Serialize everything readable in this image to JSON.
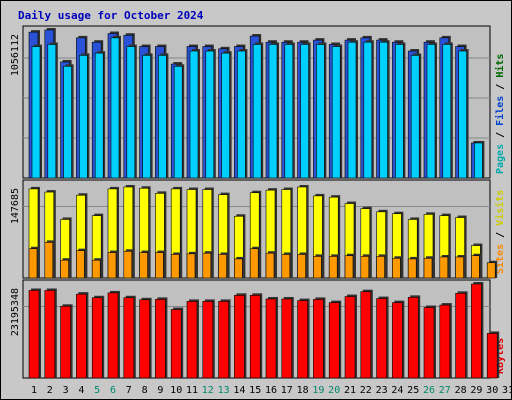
{
  "chart_data": {
    "type": "bar",
    "title": "Daily usage for October 2024",
    "categories": [
      "1",
      "2",
      "3",
      "4",
      "5",
      "6",
      "7",
      "8",
      "9",
      "10",
      "11",
      "12",
      "13",
      "14",
      "15",
      "16",
      "17",
      "18",
      "19",
      "20",
      "21",
      "22",
      "23",
      "24",
      "25",
      "26",
      "27",
      "28",
      "29",
      "30",
      "31"
    ],
    "weekend_days": [
      "5",
      "6",
      "12",
      "13",
      "19",
      "20",
      "26",
      "27"
    ],
    "panels": [
      {
        "id": "top",
        "y_max_label": "1056112",
        "y_max": 1056112,
        "legend": [
          {
            "text": "Pages",
            "color": "#00aaaa"
          },
          {
            "text": " / ",
            "color": "#000000"
          },
          {
            "text": "Files",
            "color": "#0044cc"
          },
          {
            "text": " / ",
            "color": "#000000"
          },
          {
            "text": "Hits",
            "color": "#006600"
          }
        ],
        "series": [
          {
            "name": "Hits",
            "color": "#2a52d6",
            "values": [
              1041000,
              1056112,
              828000,
              1000000,
              969000,
              1031000,
              1019000,
              938000,
              938000,
              813000,
              938000,
              938000,
              922000,
              938000,
              1013000,
              969000,
              969000,
              969000,
              984000,
              953000,
              984000,
              1000000,
              984000,
              969000,
              906000,
              969000,
              1000000,
              938000,
              250000,
              0,
              0
            ]
          },
          {
            "name": "Files",
            "color": "#00d0ff",
            "values": [
              938000,
              953000,
              797000,
              875000,
              891000,
              1000000,
              938000,
              875000,
              875000,
              797000,
              906000,
              906000,
              891000,
              906000,
              953000,
              953000,
              953000,
              953000,
              953000,
              938000,
              969000,
              969000,
              969000,
              953000,
              875000,
              953000,
              953000,
              906000,
              250000,
              0,
              0
            ]
          }
        ]
      },
      {
        "id": "mid",
        "y_max_label": "147685",
        "y_max": 147685,
        "legend": [
          {
            "text": "Sites",
            "color": "#ff8800"
          },
          {
            "text": " / ",
            "color": "#000000"
          },
          {
            "text": "Visits",
            "color": "#cccc00"
          }
        ],
        "series": [
          {
            "name": "Visits",
            "color": "#ffff00",
            "values": [
              140000,
              135000,
              92000,
              130000,
              98000,
              140000,
              143000,
              141000,
              133000,
              140000,
              139000,
              139000,
              131000,
              97000,
              134000,
              138000,
              139000,
              143000,
              129000,
              127000,
              117000,
              109000,
              104000,
              101000,
              92000,
              100000,
              98000,
              95000,
              51000,
              0,
              0
            ]
          },
          {
            "name": "Sites",
            "color": "#ff9900",
            "values": [
              46000,
              56000,
              28000,
              43000,
              28000,
              40000,
              42000,
              40000,
              40000,
              37000,
              38000,
              39000,
              37000,
              30000,
              46000,
              39000,
              37000,
              37000,
              34000,
              34000,
              35000,
              34000,
              34000,
              31000,
              30000,
              31000,
              33000,
              33000,
              35000,
              24000,
              0
            ]
          }
        ]
      },
      {
        "id": "bot",
        "y_max_label": "23195348",
        "y_max": 23195348,
        "legend": [
          {
            "text": "KBytes",
            "color": "#dd0000"
          }
        ],
        "series": [
          {
            "name": "KBytes",
            "color": "#ff0000",
            "values": [
              21600000,
              21600000,
              17700000,
              20700000,
              19800000,
              21000000,
              19800000,
              19300000,
              19400000,
              16900000,
              18900000,
              18900000,
              18900000,
              20400000,
              20400000,
              19500000,
              19500000,
              19100000,
              19400000,
              18600000,
              20100000,
              21300000,
              19600000,
              18600000,
              19900000,
              17400000,
              18000000,
              20900000,
              23195348,
              11000000,
              0
            ]
          }
        ]
      }
    ]
  }
}
